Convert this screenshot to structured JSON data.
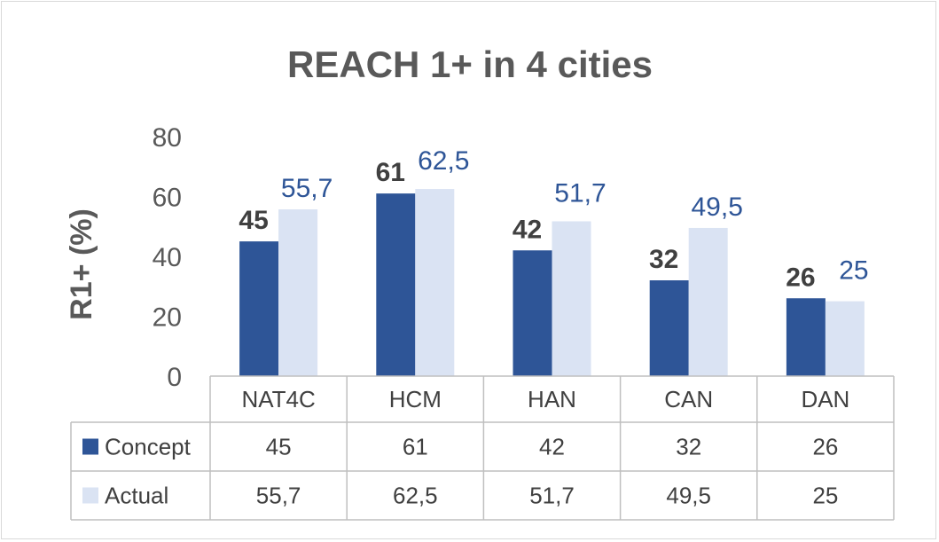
{
  "chart_data": {
    "type": "bar",
    "title": "REACH 1+ in 4 cities",
    "xlabel": "",
    "ylabel": "R1+ (%)",
    "ylim": [
      0,
      80
    ],
    "yticks": [
      "0",
      "20",
      "40",
      "60",
      "80"
    ],
    "grid": false,
    "legend": "data-table",
    "categories": [
      "NAT4C",
      "HCM",
      "HAN",
      "CAN",
      "DAN"
    ],
    "series": [
      {
        "name": "Concept",
        "color": "#2e5597",
        "values": [
          45,
          61,
          42,
          32,
          26
        ],
        "labels": [
          "45",
          "61",
          "42",
          "32",
          "26"
        ]
      },
      {
        "name": "Actual",
        "color": "#dae3f3",
        "values": [
          55.7,
          62.5,
          51.7,
          49.5,
          25
        ],
        "labels": [
          "55,7",
          "62,5",
          "51,7",
          "49,5",
          "25"
        ]
      }
    ]
  }
}
